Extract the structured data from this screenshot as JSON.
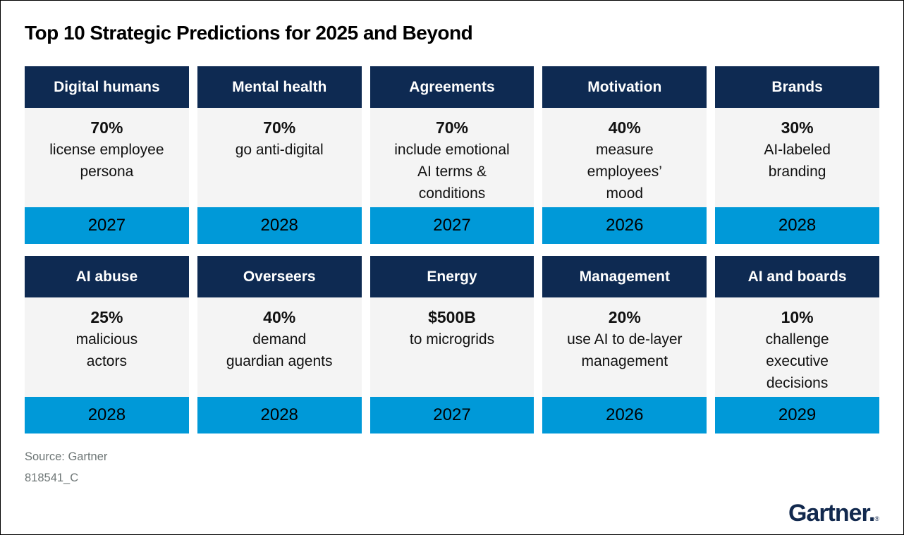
{
  "title": "Top 10 Strategic Predictions for 2025 and Beyond",
  "cards": [
    {
      "category": "Digital humans",
      "stat": "70%",
      "description": "license employee\npersona",
      "year": "2027"
    },
    {
      "category": "Mental health",
      "stat": "70%",
      "description": "go anti-digital",
      "year": "2028"
    },
    {
      "category": "Agreements",
      "stat": "70%",
      "description": "include emotional\nAI terms &\nconditions",
      "year": "2027"
    },
    {
      "category": "Motivation",
      "stat": "40%",
      "description": "measure\nemployees’\nmood",
      "year": "2026"
    },
    {
      "category": "Brands",
      "stat": "30%",
      "description": "AI-labeled\nbranding",
      "year": "2028"
    },
    {
      "category": "AI abuse",
      "stat": "25%",
      "description": "malicious\nactors",
      "year": "2028"
    },
    {
      "category": "Overseers",
      "stat": "40%",
      "description": "demand\nguardian agents",
      "year": "2028"
    },
    {
      "category": "Energy",
      "stat": "$500B",
      "description": "to microgrids",
      "year": "2027"
    },
    {
      "category": "Management",
      "stat": "20%",
      "description": "use AI to de-layer\nmanagement",
      "year": "2026"
    },
    {
      "category": "AI and boards",
      "stat": "10%",
      "description": "challenge\nexecutive\ndecisions",
      "year": "2029"
    }
  ],
  "footer": {
    "source": "Source: Gartner",
    "code": "818541_C"
  },
  "logo": {
    "wordmark": "Gartner.",
    "registered": "®"
  },
  "colors": {
    "header_navy": "#0e2a52",
    "year_blue": "#0099d8",
    "body_gray": "#f4f4f4",
    "source_gray": "#6e7676"
  }
}
